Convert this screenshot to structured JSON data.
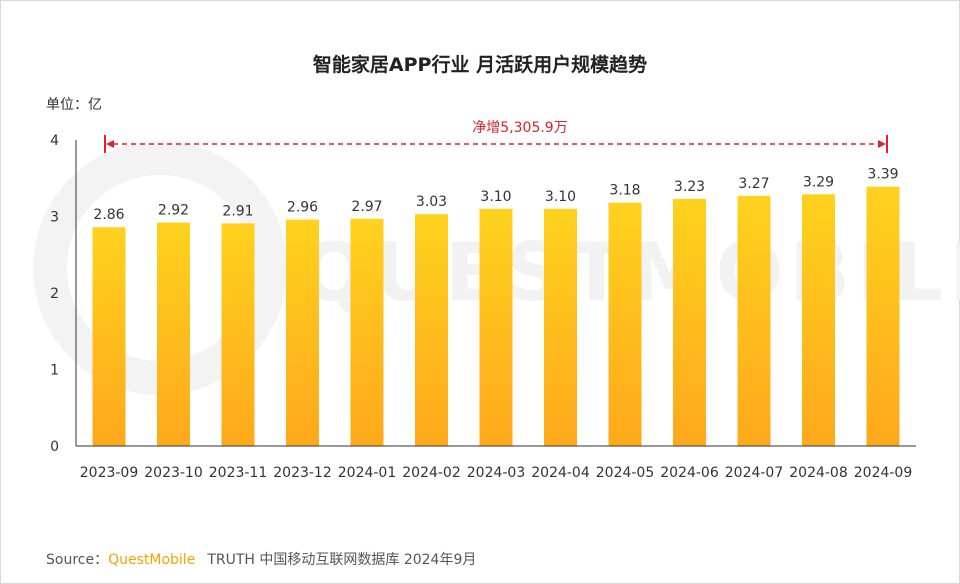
{
  "chart_data": {
    "type": "bar",
    "title": "智能家居APP行业 月活跃用户规模趋势",
    "unit": "单位：亿",
    "categories": [
      "2023-09",
      "2023-10",
      "2023-11",
      "2023-12",
      "2024-01",
      "2024-02",
      "2024-03",
      "2024-04",
      "2024-05",
      "2024-06",
      "2024-07",
      "2024-08",
      "2024-09"
    ],
    "values": [
      2.86,
      2.92,
      2.91,
      2.96,
      2.97,
      3.03,
      3.1,
      3.1,
      3.18,
      3.23,
      3.27,
      3.29,
      3.39
    ],
    "value_labels": [
      "2.86",
      "2.92",
      "2.91",
      "2.96",
      "2.97",
      "3.03",
      "3.10",
      "3.10",
      "3.18",
      "3.23",
      "3.27",
      "3.29",
      "3.39"
    ],
    "ylim": [
      0,
      4
    ],
    "yticks": [
      "0",
      "1",
      "2",
      "3",
      "4"
    ],
    "grid": false,
    "annotation": "净增5,305.9万",
    "colors": {
      "bar_top": "#ffd21e",
      "bar_bottom": "#ffa81c",
      "annotation": "#e0202a",
      "axis": "#333333"
    }
  },
  "watermark": "QUESTMOBILE",
  "source": {
    "prefix": "Source：",
    "brand": "QuestMobile",
    "text": "TRUTH 中国移动互联网数据库 2024年9月"
  }
}
